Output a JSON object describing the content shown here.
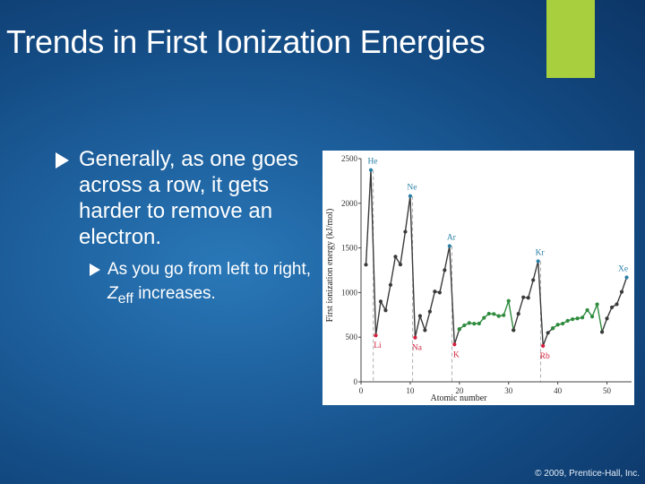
{
  "slide": {
    "title": "Trends in First Ionization Energies",
    "bullet1": "Generally, as one goes across a row, it gets harder to remove an electron.",
    "bullet2_pre": "As you go from left to right, ",
    "bullet2_z": "Z",
    "bullet2_sub": "eff",
    "bullet2_post": " increases.",
    "copyright": "© 2009, Prentice-Hall, Inc.",
    "colors": {
      "accent": "#a8cf3e",
      "background": "#1d5f9c",
      "series_main": "#3a3a3a",
      "series_transition": "#2e8b3d",
      "alkali_marker": "#d21f3c",
      "noble_marker": "#2a7fa6"
    }
  },
  "chart_data": {
    "type": "line",
    "xlabel": "Atomic number",
    "ylabel": "First ionization energy (kJ/mol)",
    "xlim": [
      0,
      55
    ],
    "ylim": [
      0,
      2500
    ],
    "x_ticks": [
      0,
      10,
      20,
      30,
      40,
      50
    ],
    "y_ticks": [
      0,
      500,
      1000,
      1500,
      2000,
      2500
    ],
    "grid": "vertical dashed at noble gases",
    "series": [
      {
        "role": "main",
        "x": [
          1,
          2,
          3,
          4,
          5,
          6,
          7,
          8,
          9,
          10,
          11,
          12,
          13,
          14,
          15,
          16,
          17,
          18,
          19,
          20
        ],
        "values": [
          1312,
          2372,
          520,
          900,
          801,
          1086,
          1402,
          1314,
          1681,
          2081,
          496,
          738,
          578,
          787,
          1012,
          1000,
          1251,
          1521,
          419,
          590
        ]
      },
      {
        "role": "transition",
        "x": [
          20,
          21,
          22,
          23,
          24,
          25,
          26,
          27,
          28,
          29,
          30,
          31
        ],
        "values": [
          590,
          633,
          659,
          651,
          653,
          717,
          763,
          760,
          737,
          746,
          906,
          579
        ]
      },
      {
        "role": "main",
        "x": [
          31,
          32,
          33,
          34,
          35,
          36,
          37,
          38,
          39
        ],
        "values": [
          579,
          762,
          947,
          941,
          1140,
          1351,
          403,
          549,
          600
        ]
      },
      {
        "role": "transition",
        "x": [
          39,
          40,
          41,
          42,
          43,
          44,
          45,
          46,
          47,
          48,
          49
        ],
        "values": [
          600,
          640,
          652,
          684,
          702,
          710,
          720,
          804,
          731,
          868,
          558
        ]
      },
      {
        "role": "main",
        "x": [
          49,
          50,
          51,
          52,
          53,
          54
        ],
        "values": [
          558,
          709,
          834,
          869,
          1008,
          1170
        ]
      }
    ],
    "annotations": [
      {
        "label": "He",
        "x": 2,
        "y": 2372
      },
      {
        "label": "Ne",
        "x": 10,
        "y": 2081
      },
      {
        "label": "Ar",
        "x": 18,
        "y": 1521
      },
      {
        "label": "Kr",
        "x": 36,
        "y": 1351
      },
      {
        "label": "Xe",
        "x": 54,
        "y": 1170
      },
      {
        "label": "Li",
        "x": 3,
        "y": 520
      },
      {
        "label": "Na",
        "x": 11,
        "y": 496
      },
      {
        "label": "K",
        "x": 19,
        "y": 419
      },
      {
        "label": "Rb",
        "x": 37,
        "y": 403
      }
    ]
  }
}
